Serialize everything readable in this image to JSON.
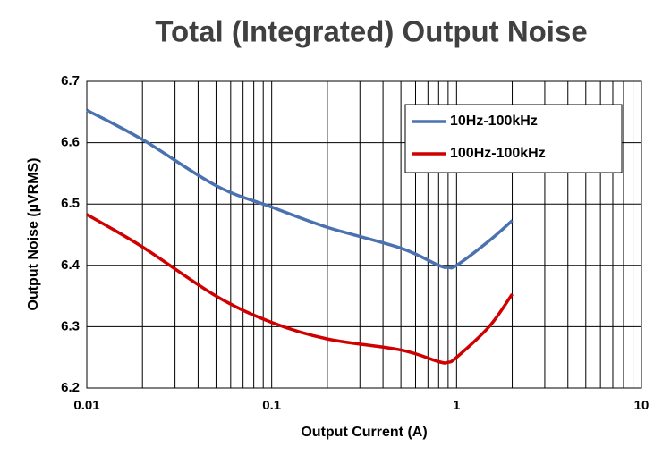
{
  "chart_data": {
    "type": "line",
    "title": "Total (Integrated) Output Noise",
    "xlabel": "Output Current (A)",
    "ylabel": "Output Noise (µVRMS)",
    "xscale": "log",
    "grid": true,
    "legend": "upper right",
    "x": [
      0.01,
      0.02,
      0.05,
      0.1,
      0.2,
      0.5,
      0.8,
      0.9,
      1.0,
      1.5,
      2
    ],
    "series": [
      {
        "name": "10Hz-100kHz",
        "color": "#4a72b0",
        "values": [
          6.653,
          6.605,
          6.53,
          6.495,
          6.462,
          6.428,
          6.4,
          6.397,
          6.4,
          6.44,
          6.473
        ]
      },
      {
        "name": "100Hz-100kHz",
        "color": "#d00000",
        "values": [
          6.483,
          6.43,
          6.35,
          6.307,
          6.28,
          6.262,
          6.243,
          6.242,
          6.25,
          6.3,
          6.353
        ]
      }
    ],
    "xlim": [
      0.01,
      10
    ],
    "xticks": [
      0.01,
      0.1,
      1,
      10
    ],
    "ylim": [
      6.2,
      6.7
    ],
    "yticks": [
      6.2,
      6.3,
      6.4,
      6.5,
      6.6,
      6.7
    ]
  }
}
